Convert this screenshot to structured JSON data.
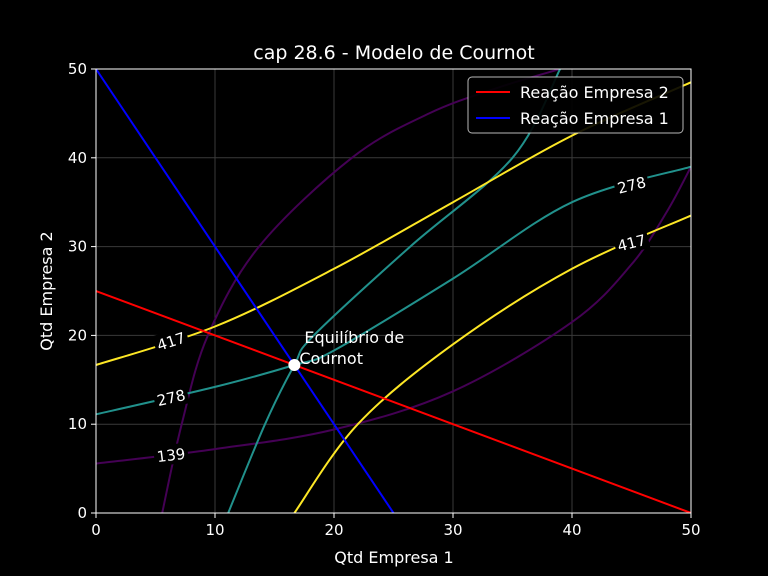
{
  "chart_data": {
    "type": "line",
    "title": "cap 28.6 - Modelo de Cournot",
    "xlabel": "Qtd Empresa 1",
    "ylabel": "Qtd Empresa 2",
    "xlim": [
      0,
      50
    ],
    "ylim": [
      0,
      50
    ],
    "xticks": [
      "0",
      "10",
      "20",
      "30",
      "40",
      "50"
    ],
    "yticks": [
      "0",
      "10",
      "20",
      "30",
      "40",
      "50"
    ],
    "grid": true,
    "legend_position": "top-right",
    "series": [
      {
        "name": "Reação Empresa 2",
        "color": "#ff0000",
        "x": [
          0,
          50
        ],
        "y": [
          25,
          0
        ]
      },
      {
        "name": "Reação Empresa 1",
        "color": "#0000ff",
        "x": [
          0,
          25
        ],
        "y": [
          50,
          0
        ]
      }
    ],
    "equilibrium": {
      "x": 16.67,
      "y": 16.67,
      "label": "Equilíbrio de\nCournot"
    },
    "contours": [
      {
        "level": 139,
        "label": "139",
        "color": "#440154",
        "branches": [
          {
            "x": [
              0,
              10,
              20,
              30,
              40,
              45,
              48,
              50
            ],
            "y": [
              5.56,
              7.2,
              9.4,
              13.7,
              21.5,
              28.0,
              34.0,
              39.0
            ]
          },
          {
            "x": [
              5.56,
              7.2,
              9.4,
              13.7,
              21.5,
              28.0,
              34.0,
              39.0
            ],
            "y": [
              0,
              10,
              20,
              30,
              40,
              45,
              48,
              50
            ]
          }
        ]
      },
      {
        "level": 278,
        "label": "278",
        "color": "#21918c",
        "branches": [
          {
            "x": [
              0,
              10,
              16.67,
              20,
              30,
              40,
              50
            ],
            "y": [
              11.11,
              14.2,
              16.67,
              18.3,
              26.4,
              35.0,
              39.0
            ]
          },
          {
            "x": [
              11.11,
              14.2,
              16.67,
              18.3,
              26.4,
              35.0,
              39.0
            ],
            "y": [
              0,
              10,
              16.67,
              20,
              30,
              40,
              50
            ]
          }
        ]
      },
      {
        "level": 417,
        "label": "417",
        "color": "#fde725",
        "branches": [
          {
            "x": [
              0,
              10,
              20,
              30,
              40,
              50
            ],
            "y": [
              16.67,
              21.0,
              27.5,
              35.0,
              42.5,
              48.5
            ]
          },
          {
            "x": [
              16.67,
              22,
              30,
              40,
              50
            ],
            "y": [
              0,
              10,
              19.0,
              27.5,
              33.5
            ]
          }
        ]
      }
    ]
  }
}
